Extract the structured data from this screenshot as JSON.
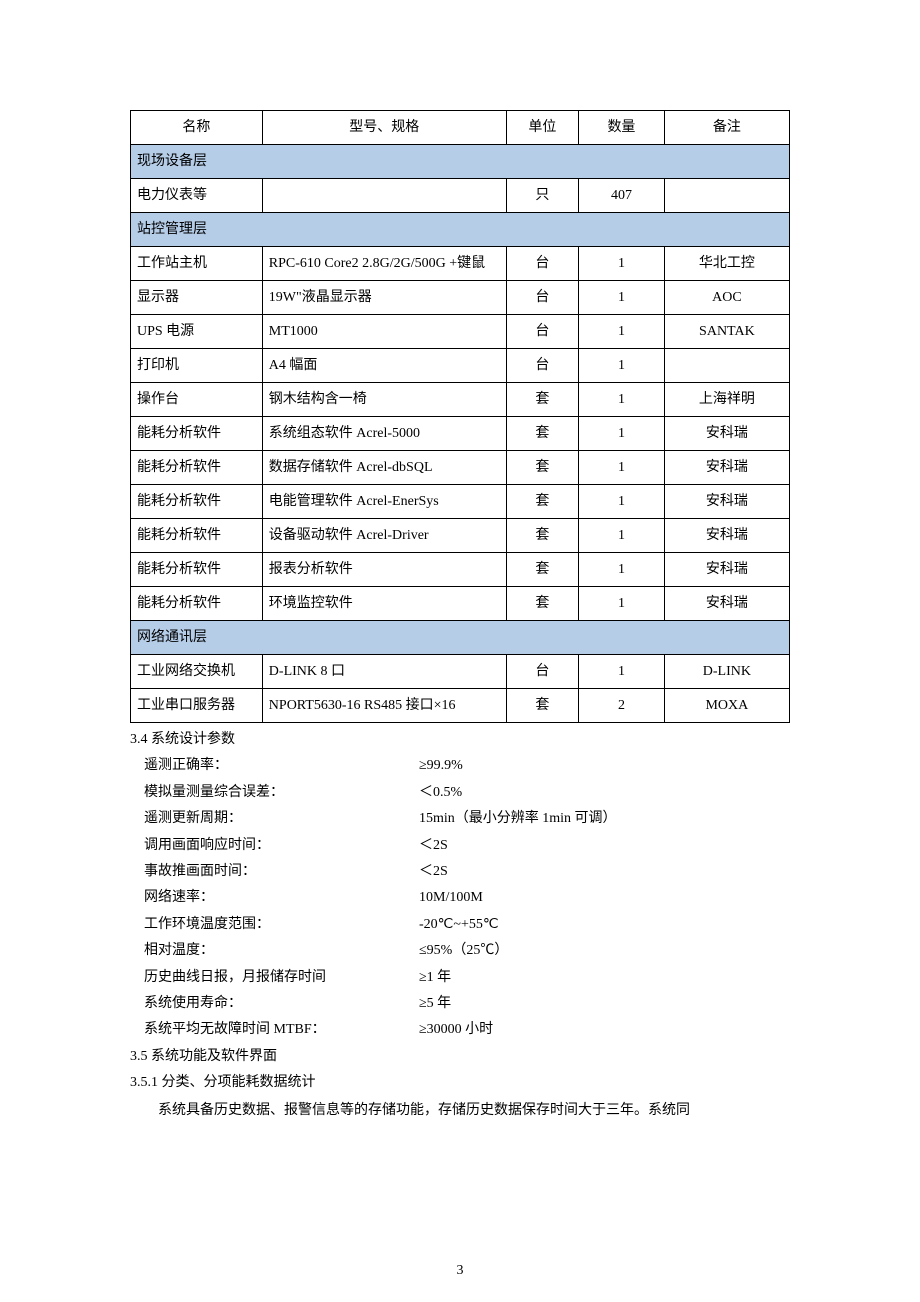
{
  "table": {
    "headers": [
      "名称",
      "型号、规格",
      "单位",
      "数量",
      "备注"
    ],
    "section_header_bg": "#b6cde8",
    "border_color": "#000000",
    "sections": [
      {
        "title": "现场设备层",
        "rows": [
          [
            "电力仪表等",
            "",
            "只",
            "407",
            ""
          ]
        ]
      },
      {
        "title": "站控管理层",
        "rows": [
          [
            "工作站主机",
            "RPC-610 Core2 2.8G/2G/500G +键鼠",
            "台",
            "1",
            "华北工控"
          ],
          [
            "显示器",
            "19W\"液晶显示器",
            "台",
            "1",
            "AOC"
          ],
          [
            "UPS 电源",
            "MT1000",
            "台",
            "1",
            "SANTAK"
          ],
          [
            "打印机",
            "A4 幅面",
            "台",
            "1",
            ""
          ],
          [
            "操作台",
            "钢木结构含一椅",
            "套",
            "1",
            "上海祥明"
          ],
          [
            "能耗分析软件",
            "系统组态软件 Acrel-5000",
            "套",
            "1",
            "安科瑞"
          ],
          [
            "能耗分析软件",
            "数据存储软件 Acrel-dbSQL",
            "套",
            "1",
            "安科瑞"
          ],
          [
            "能耗分析软件",
            "电能管理软件 Acrel-EnerSys",
            "套",
            "1",
            "安科瑞"
          ],
          [
            "能耗分析软件",
            "设备驱动软件 Acrel-Driver",
            "套",
            "1",
            "安科瑞"
          ],
          [
            "能耗分析软件",
            "报表分析软件",
            "套",
            "1",
            "安科瑞"
          ],
          [
            "能耗分析软件",
            "环境监控软件",
            "套",
            "1",
            "安科瑞"
          ]
        ]
      },
      {
        "title": "网络通讯层",
        "rows": [
          [
            "工业网络交换机",
            "D-LINK 8 口",
            "台",
            "1",
            "D-LINK"
          ],
          [
            "工业串口服务器",
            "NPORT5630-16    RS485 接口×16",
            "套",
            "2",
            "MOXA"
          ]
        ]
      }
    ]
  },
  "section34": {
    "heading": "3.4 系统设计参数",
    "params": [
      [
        "遥测正确率：",
        "≥99.9%"
      ],
      [
        "模拟量测量综合误差：",
        "＜0.5%"
      ],
      [
        "遥测更新周期：",
        "15min（最小分辨率 1min 可调）"
      ],
      [
        "调用画面响应时间：",
        "＜2S"
      ],
      [
        "事故推画面时间：",
        "＜2S"
      ],
      [
        "网络速率：",
        "10M/100M"
      ],
      [
        "工作环境温度范围：",
        "-20℃~+55℃"
      ],
      [
        "相对温度：",
        "≤95%（25℃）"
      ],
      [
        "历史曲线日报，月报储存时间",
        "≥1 年"
      ],
      [
        "系统使用寿命：",
        "≥5 年"
      ],
      [
        "系统平均无故障时间 MTBF：",
        "≥30000 小时"
      ]
    ]
  },
  "section35": {
    "heading": "3.5 系统功能及软件界面"
  },
  "section351": {
    "heading": "3.5.1 分类、分项能耗数据统计",
    "body": "系统具备历史数据、报警信息等的存储功能，存储历史数据保存时间大于三年。系统同"
  },
  "page_number": "3"
}
